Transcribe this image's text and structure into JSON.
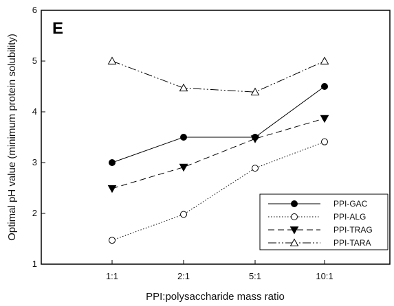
{
  "chart_data": {
    "type": "line",
    "panel_label": "E",
    "title": "",
    "xlabel": "PPI:polysaccharide mass ratio",
    "ylabel": "Optimal pH value (minimum protein solubility)",
    "categories": [
      "1:1",
      "2:1",
      "5:1",
      "10:1"
    ],
    "ylim": [
      1,
      6
    ],
    "yticks": [
      1,
      2,
      3,
      4,
      5,
      6
    ],
    "grid": false,
    "legend_position": "bottom-right",
    "series": [
      {
        "name": "PPI-GAC",
        "values": [
          3.0,
          3.5,
          3.5,
          4.5
        ],
        "marker": "filled-circle",
        "line": "solid"
      },
      {
        "name": "PPI-ALG",
        "values": [
          1.47,
          1.98,
          2.89,
          3.41
        ],
        "marker": "open-circle",
        "line": "dotted"
      },
      {
        "name": "PPI-TRAG",
        "values": [
          2.49,
          2.91,
          3.47,
          3.87
        ],
        "marker": "filled-triangle-down",
        "line": "dashed"
      },
      {
        "name": "PPI-TARA",
        "values": [
          5.0,
          4.47,
          4.39,
          5.0
        ],
        "marker": "open-triangle-up",
        "line": "dash-dot-dot"
      }
    ]
  }
}
